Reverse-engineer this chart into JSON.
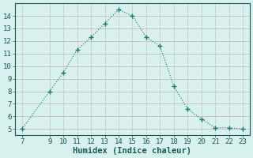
{
  "x": [
    7,
    9,
    10,
    11,
    12,
    13,
    14,
    15,
    16,
    17,
    18,
    19,
    20,
    21,
    22,
    23
  ],
  "y": [
    5.0,
    8.0,
    9.5,
    11.3,
    12.3,
    13.4,
    14.5,
    14.0,
    12.3,
    11.6,
    8.4,
    6.6,
    5.8,
    5.1,
    5.1,
    5.0
  ],
  "xticks": [
    7,
    9,
    10,
    11,
    12,
    13,
    14,
    15,
    16,
    17,
    18,
    19,
    20,
    21,
    22,
    23
  ],
  "yticks": [
    5,
    6,
    7,
    8,
    9,
    10,
    11,
    12,
    13,
    14
  ],
  "xlim": [
    6.5,
    23.5
  ],
  "ylim": [
    4.5,
    15.0
  ],
  "xlabel": "Humidex (Indice chaleur)",
  "line_color": "#1a7a6e",
  "marker_color": "#1a7a6e",
  "bg_color": "#d8f0ee",
  "grid_color_h": "#c8b0b0",
  "grid_color_v": "#c8c8c0",
  "tick_label_color": "#1a5a5a",
  "xlabel_color": "#1a5a5a",
  "xlabel_fontsize": 7.5,
  "tick_fontsize": 6.5
}
